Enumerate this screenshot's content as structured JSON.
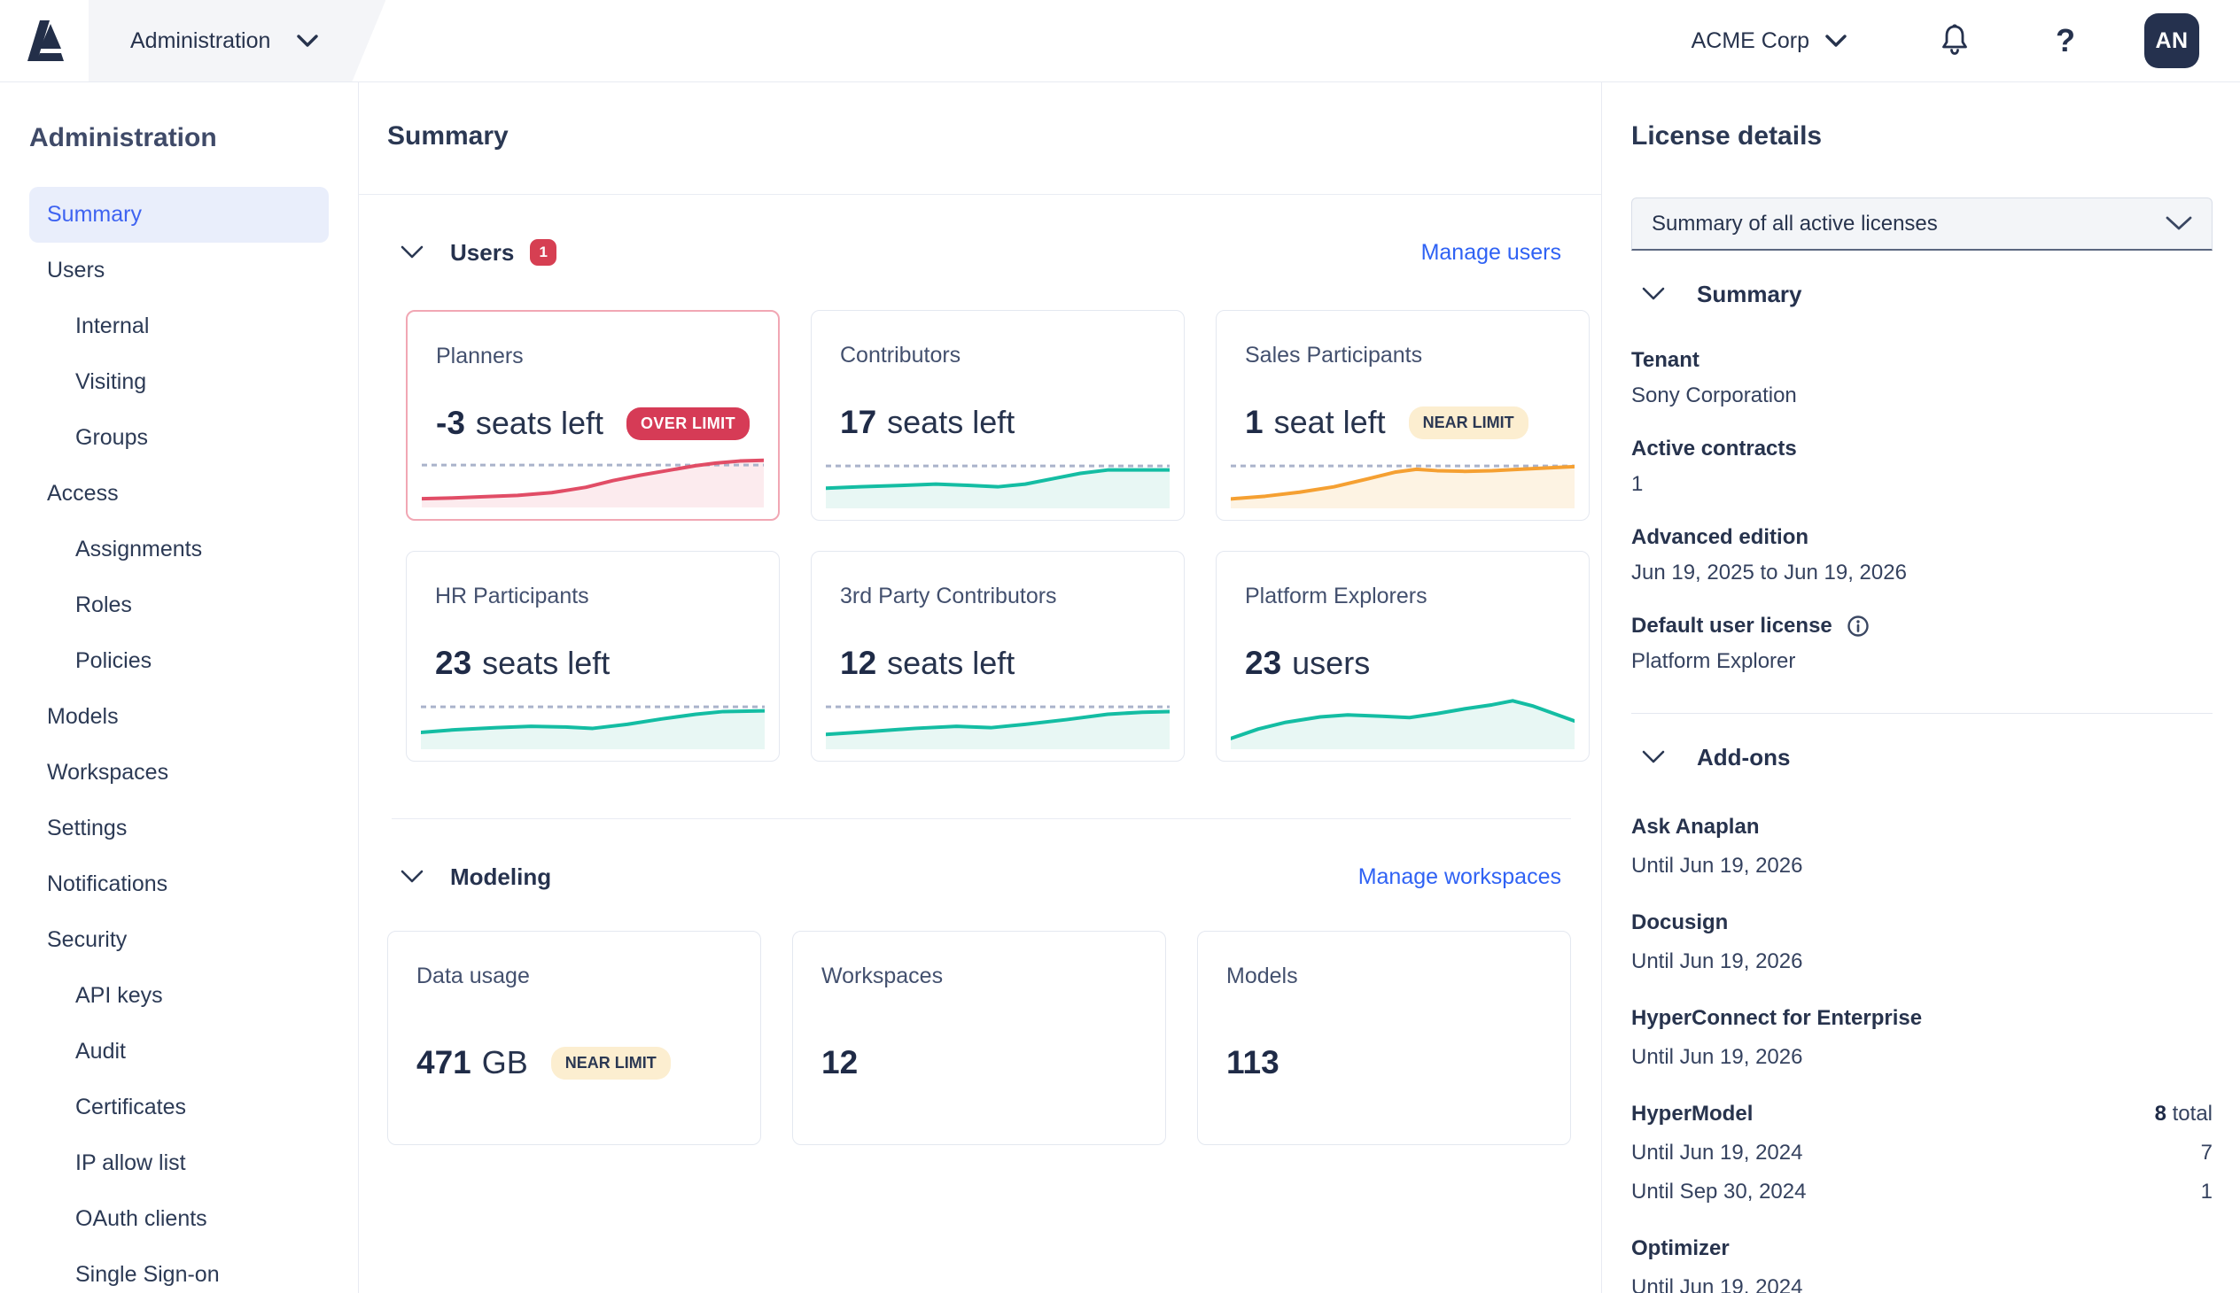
{
  "colors": {
    "brand_navy": "#25314e",
    "accent_blue": "#2f62f4",
    "selected_nav_bg": "#e9eefb",
    "danger_red": "#d63b56",
    "over_card_border": "#f1a7b4",
    "near_badge_bg": "#fceed0",
    "teal_line": "#14bda3",
    "orange_line": "#f5a032",
    "red_line": "#e14d66",
    "threshold_dash": "#aab3cb"
  },
  "topbar": {
    "logo_icon": "anaplan-logo",
    "app_menu_label": "Administration",
    "tenant_label": "ACME Corp",
    "bell_icon": "notifications-bell",
    "help_label": "?",
    "avatar_initials": "AN"
  },
  "sidebar": {
    "title": "Administration",
    "items": [
      {
        "label": "Summary",
        "level": 1,
        "selected": true
      },
      {
        "label": "Users",
        "level": 1,
        "selected": false
      },
      {
        "label": "Internal",
        "level": 2,
        "selected": false
      },
      {
        "label": "Visiting",
        "level": 2,
        "selected": false
      },
      {
        "label": "Groups",
        "level": 2,
        "selected": false
      },
      {
        "label": "Access",
        "level": 1,
        "selected": false
      },
      {
        "label": "Assignments",
        "level": 2,
        "selected": false
      },
      {
        "label": "Roles",
        "level": 2,
        "selected": false
      },
      {
        "label": "Policies",
        "level": 2,
        "selected": false
      },
      {
        "label": "Models",
        "level": 1,
        "selected": false
      },
      {
        "label": "Workspaces",
        "level": 1,
        "selected": false
      },
      {
        "label": "Settings",
        "level": 1,
        "selected": false
      },
      {
        "label": "Notifications",
        "level": 1,
        "selected": false
      },
      {
        "label": "Security",
        "level": 1,
        "selected": false
      },
      {
        "label": "API keys",
        "level": 2,
        "selected": false
      },
      {
        "label": "Audit",
        "level": 2,
        "selected": false
      },
      {
        "label": "Certificates",
        "level": 2,
        "selected": false
      },
      {
        "label": "IP allow list",
        "level": 2,
        "selected": false
      },
      {
        "label": "OAuth clients",
        "level": 2,
        "selected": false
      },
      {
        "label": "Single Sign-on",
        "level": 2,
        "selected": false
      }
    ]
  },
  "main": {
    "title": "Summary",
    "sections": [
      {
        "label": "Users",
        "badge": "1",
        "action": "Manage users",
        "cards": [
          {
            "title": "Planners",
            "value": "-3",
            "unit": "seats left",
            "badge": {
              "text": "OVER LIMIT",
              "type": "over"
            },
            "highlight": true,
            "sparkline": {
              "type": "area",
              "color": "#e14d66",
              "fill": "#fcebee",
              "threshold": 63,
              "points": [
                [
                  0,
                  13
                ],
                [
                  8,
                  14
                ],
                [
                  18,
                  16
                ],
                [
                  28,
                  18
                ],
                [
                  38,
                  22
                ],
                [
                  48,
                  30
                ],
                [
                  56,
                  40
                ],
                [
                  64,
                  48
                ],
                [
                  72,
                  55
                ],
                [
                  80,
                  62
                ],
                [
                  86,
                  66
                ],
                [
                  93,
                  69
                ],
                [
                  100,
                  70
                ]
              ]
            }
          },
          {
            "title": "Contributors",
            "value": "17",
            "unit": "seats left",
            "sparkline": {
              "type": "area",
              "color": "#14bda3",
              "fill": "#e8f7f4",
              "threshold": 63,
              "points": [
                [
                  0,
                  30
                ],
                [
                  10,
                  32
                ],
                [
                  22,
                  34
                ],
                [
                  32,
                  36
                ],
                [
                  42,
                  34
                ],
                [
                  50,
                  32
                ],
                [
                  58,
                  36
                ],
                [
                  66,
                  44
                ],
                [
                  74,
                  52
                ],
                [
                  82,
                  57
                ],
                [
                  100,
                  57
                ]
              ]
            }
          },
          {
            "title": "Sales Participants",
            "value": "1",
            "unit": "seat left",
            "badge": {
              "text": "NEAR LIMIT",
              "type": "near"
            },
            "sparkline": {
              "type": "area",
              "color": "#f5a032",
              "fill": "#fdf3e3",
              "threshold": 63,
              "points": [
                [
                  0,
                  14
                ],
                [
                  10,
                  18
                ],
                [
                  20,
                  24
                ],
                [
                  30,
                  32
                ],
                [
                  40,
                  44
                ],
                [
                  48,
                  54
                ],
                [
                  54,
                  58
                ],
                [
                  60,
                  56
                ],
                [
                  68,
                  55
                ],
                [
                  76,
                  56
                ],
                [
                  84,
                  58
                ],
                [
                  92,
                  60
                ],
                [
                  100,
                  62
                ]
              ]
            }
          },
          {
            "title": "HR Participants",
            "value": "23",
            "unit": "seats left",
            "sparkline": {
              "type": "area",
              "color": "#14bda3",
              "fill": "#e8f7f4",
              "threshold": 63,
              "points": [
                [
                  0,
                  25
                ],
                [
                  10,
                  29
                ],
                [
                  22,
                  32
                ],
                [
                  32,
                  34
                ],
                [
                  42,
                  33
                ],
                [
                  50,
                  31
                ],
                [
                  60,
                  37
                ],
                [
                  70,
                  45
                ],
                [
                  80,
                  52
                ],
                [
                  88,
                  56
                ],
                [
                  100,
                  57
                ]
              ]
            }
          },
          {
            "title": "3rd Party Contributors",
            "value": "12",
            "unit": "seats left",
            "sparkline": {
              "type": "area",
              "color": "#14bda3",
              "fill": "#e8f7f4",
              "threshold": 63,
              "points": [
                [
                  0,
                  22
                ],
                [
                  12,
                  26
                ],
                [
                  26,
                  31
                ],
                [
                  38,
                  34
                ],
                [
                  48,
                  32
                ],
                [
                  58,
                  37
                ],
                [
                  70,
                  44
                ],
                [
                  82,
                  52
                ],
                [
                  92,
                  55
                ],
                [
                  100,
                  56
                ]
              ]
            }
          },
          {
            "title": "Platform Explorers",
            "value": "23",
            "unit": "users",
            "sparkline": {
              "type": "area",
              "color": "#14bda3",
              "fill": "#e8f7f4",
              "threshold": null,
              "points": [
                [
                  0,
                  16
                ],
                [
                  8,
                  30
                ],
                [
                  16,
                  40
                ],
                [
                  26,
                  48
                ],
                [
                  34,
                  51
                ],
                [
                  44,
                  49
                ],
                [
                  52,
                  47
                ],
                [
                  60,
                  53
                ],
                [
                  68,
                  60
                ],
                [
                  76,
                  66
                ],
                [
                  82,
                  72
                ],
                [
                  88,
                  64
                ],
                [
                  100,
                  42
                ]
              ]
            }
          }
        ]
      },
      {
        "label": "Modeling",
        "action": "Manage workspaces",
        "cards": [
          {
            "title": "Data usage",
            "value": "471",
            "unit": "GB",
            "badge": {
              "text": "NEAR LIMIT",
              "type": "near"
            }
          },
          {
            "title": "Workspaces",
            "value": "12",
            "unit": ""
          },
          {
            "title": "Models",
            "value": "113",
            "unit": ""
          }
        ]
      }
    ]
  },
  "license_panel": {
    "title": "License details",
    "selector_value": "Summary of all active licenses",
    "summary_label": "Summary",
    "fields": [
      {
        "label": "Tenant",
        "value": "Sony Corporation",
        "info": false
      },
      {
        "label": "Active contracts",
        "value": "1",
        "info": false
      },
      {
        "label": "Advanced edition",
        "value": "Jun 19, 2025 to Jun 19, 2026",
        "info": false
      },
      {
        "label": "Default user license",
        "value": "Platform Explorer",
        "info": true
      }
    ],
    "addons_label": "Add-ons",
    "addons": [
      {
        "name": "Ask Anaplan",
        "rows": [
          {
            "date": "Until Jun 19, 2026"
          }
        ]
      },
      {
        "name": "Docusign",
        "rows": [
          {
            "date": "Until Jun 19, 2026"
          }
        ]
      },
      {
        "name": "HyperConnect for Enterprise",
        "rows": [
          {
            "date": "Until Jun 19, 2026"
          }
        ]
      },
      {
        "name": "HyperModel",
        "total": "8",
        "total_suffix": " total",
        "rows": [
          {
            "date": "Until Jun 19, 2024",
            "count": "7"
          },
          {
            "date": "Until Sep 30, 2024",
            "count": "1"
          }
        ]
      },
      {
        "name": "Optimizer",
        "rows": [
          {
            "date": "Until Jun 19, 2024"
          }
        ]
      }
    ]
  }
}
